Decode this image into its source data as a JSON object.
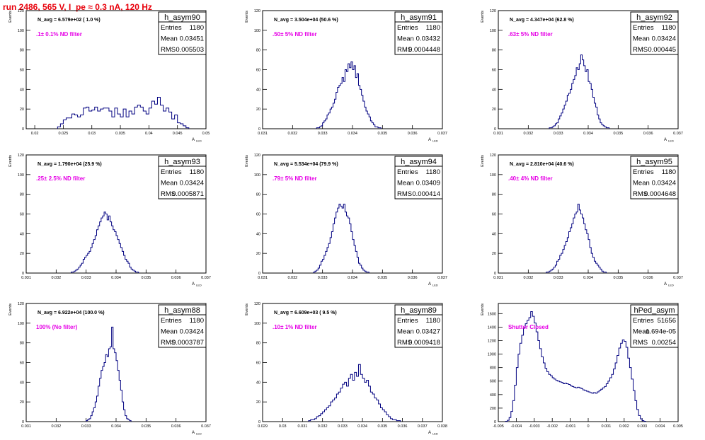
{
  "run_title": "run 2486,   565 V, I_pe ≈ 0.3 nA, 120 Hz",
  "colors": {
    "title": "#e8000b",
    "filter": "#e600e6",
    "hist": "#000080",
    "frame": "#000000"
  },
  "chart_data": [
    {
      "type": "bar",
      "name": "h_asym90",
      "navg": "N_avg = 6.579e+02 ( 1.0 %)",
      "filter": ".1± 0.1% ND filter",
      "stats": [
        [
          "Entries",
          "1180"
        ],
        [
          "Mean",
          "0.03451"
        ],
        [
          "RMS",
          "0.005503"
        ]
      ],
      "ylabel": "Events",
      "xlabel": "A",
      "xlim": [
        0.0185,
        0.05
      ],
      "ylim": [
        0,
        120
      ],
      "xticks": [
        0.02,
        0.025,
        0.03,
        0.035,
        0.04,
        0.045,
        0.05
      ],
      "xtick_labels": [
        "0.02",
        "0.025",
        "0.03",
        "0.035",
        "0.04",
        "0.045",
        "0.05"
      ],
      "yticks": [
        0,
        20,
        40,
        60,
        80,
        100,
        120
      ],
      "bins": {
        "start": 0.024,
        "width": 0.0005,
        "values": [
          2,
          5,
          9,
          11,
          11,
          15,
          14,
          12,
          14,
          21,
          22,
          18,
          19,
          22,
          18,
          20,
          21,
          21,
          18,
          12,
          21,
          15,
          12,
          20,
          12,
          18,
          15,
          22,
          24,
          22,
          18,
          15,
          21,
          28,
          25,
          32,
          24,
          18,
          21,
          17,
          10,
          14,
          6,
          5,
          3,
          1
        ]
      }
    },
    {
      "type": "bar",
      "name": "h_asym91",
      "navg": "N_avg = 3.504e+04 (50.6 %)",
      "filter": ".50± 5% ND filter",
      "stats": [
        [
          "Entries",
          "1180"
        ],
        [
          "Mean",
          "0.03432"
        ],
        [
          "RMS",
          "0.0004448"
        ]
      ],
      "ylabel": "Events",
      "xlabel": "A",
      "xlim": [
        0.031,
        0.037
      ],
      "ylim": [
        0,
        120
      ],
      "xticks": [
        0.031,
        0.032,
        0.033,
        0.034,
        0.035,
        0.036,
        0.037
      ],
      "xtick_labels": [
        "0.031",
        "0.032",
        "0.033",
        "0.034",
        "0.035",
        "0.036",
        "0.037"
      ],
      "yticks": [
        0,
        20,
        40,
        60,
        80,
        100,
        120
      ],
      "bins": {
        "start": 0.0328,
        "width": 5e-05,
        "values": [
          1,
          1,
          2,
          3,
          6,
          8,
          10,
          14,
          16,
          20,
          22,
          26,
          30,
          37,
          42,
          44,
          46,
          52,
          48,
          60,
          58,
          66,
          62,
          68,
          60,
          64,
          52,
          56,
          44,
          40,
          34,
          28,
          22,
          18,
          15,
          12,
          8,
          6,
          4,
          2,
          2,
          1,
          1
        ]
      }
    },
    {
      "type": "bar",
      "name": "h_asym92",
      "navg": "N_avg = 4.347e+04 (62.8 %)",
      "filter": ".63± 5% ND filter",
      "stats": [
        [
          "Entries",
          "1180"
        ],
        [
          "Mean",
          "0.03424"
        ],
        [
          "RMS",
          "0.000445"
        ]
      ],
      "ylabel": "Events",
      "xlabel": "A",
      "xlim": [
        0.031,
        0.037
      ],
      "ylim": [
        0,
        120
      ],
      "xticks": [
        0.031,
        0.032,
        0.033,
        0.034,
        0.035,
        0.036,
        0.037
      ],
      "xtick_labels": [
        "0.031",
        "0.032",
        "0.033",
        "0.034",
        "0.035",
        "0.036",
        "0.037"
      ],
      "yticks": [
        0,
        20,
        40,
        60,
        80,
        100,
        120
      ],
      "bins": {
        "start": 0.0327,
        "width": 5e-05,
        "values": [
          1,
          1,
          2,
          3,
          5,
          6,
          10,
          13,
          16,
          20,
          24,
          28,
          34,
          36,
          40,
          46,
          50,
          54,
          62,
          60,
          66,
          75,
          70,
          64,
          58,
          60,
          48,
          46,
          40,
          32,
          26,
          22,
          14,
          10,
          6,
          4,
          3,
          2,
          1,
          1
        ]
      }
    },
    {
      "type": "bar",
      "name": "h_asym93",
      "navg": "N_avg = 1.790e+04 (25.9 %)",
      "filter": ".25± 2.5% ND filter",
      "stats": [
        [
          "Entries",
          "1180"
        ],
        [
          "Mean",
          "0.03424"
        ],
        [
          "RMS",
          "0.0005871"
        ]
      ],
      "ylabel": "Events",
      "xlabel": "A",
      "xlim": [
        0.031,
        0.037
      ],
      "ylim": [
        0,
        120
      ],
      "xticks": [
        0.031,
        0.032,
        0.033,
        0.034,
        0.035,
        0.036,
        0.037
      ],
      "xtick_labels": [
        "0.031",
        "0.032",
        "0.033",
        "0.034",
        "0.035",
        "0.036",
        "0.037"
      ],
      "yticks": [
        0,
        20,
        40,
        60,
        80,
        100,
        120
      ],
      "bins": {
        "start": 0.0325,
        "width": 5e-05,
        "values": [
          1,
          1,
          2,
          3,
          4,
          6,
          8,
          10,
          14,
          16,
          18,
          20,
          22,
          26,
          30,
          34,
          38,
          44,
          48,
          52,
          56,
          58,
          62,
          60,
          54,
          58,
          52,
          48,
          44,
          42,
          38,
          34,
          30,
          26,
          22,
          18,
          14,
          12,
          10,
          6,
          4,
          3,
          2,
          1,
          1
        ]
      }
    },
    {
      "type": "bar",
      "name": "h_asym94",
      "navg": "N_avg = 5.534e+04 (79.9 %)",
      "filter": ".79± 5% ND filter",
      "stats": [
        [
          "Entries",
          "1180"
        ],
        [
          "Mean",
          "0.03409"
        ],
        [
          "RMS",
          "0.000414"
        ]
      ],
      "ylabel": "Events",
      "xlabel": "A",
      "xlim": [
        0.031,
        0.037
      ],
      "ylim": [
        0,
        120
      ],
      "xticks": [
        0.031,
        0.032,
        0.033,
        0.034,
        0.035,
        0.036,
        0.037
      ],
      "xtick_labels": [
        "0.031",
        "0.032",
        "0.033",
        "0.034",
        "0.035",
        "0.036",
        "0.037"
      ],
      "yticks": [
        0,
        20,
        40,
        60,
        80,
        100,
        120
      ],
      "bins": {
        "start": 0.0327,
        "width": 5e-05,
        "values": [
          1,
          2,
          3,
          5,
          8,
          12,
          14,
          18,
          22,
          26,
          30,
          36,
          42,
          50,
          56,
          62,
          66,
          70,
          68,
          66,
          70,
          62,
          58,
          56,
          50,
          42,
          34,
          28,
          22,
          16,
          10,
          8,
          5,
          3,
          2,
          1,
          1
        ]
      }
    },
    {
      "type": "bar",
      "name": "h_asym95",
      "navg": "N_avg = 2.810e+04 (40.6 %)",
      "filter": ".40± 4% ND filter",
      "stats": [
        [
          "Entries",
          "1180"
        ],
        [
          "Mean",
          "0.03424"
        ],
        [
          "RMS",
          "0.0004648"
        ]
      ],
      "ylabel": "Events",
      "xlabel": "A",
      "xlim": [
        0.031,
        0.037
      ],
      "ylim": [
        0,
        120
      ],
      "xticks": [
        0.031,
        0.032,
        0.033,
        0.034,
        0.035,
        0.036,
        0.037
      ],
      "xtick_labels": [
        "0.031",
        "0.032",
        "0.033",
        "0.034",
        "0.035",
        "0.036",
        "0.037"
      ],
      "yticks": [
        0,
        20,
        40,
        60,
        80,
        100,
        120
      ],
      "bins": {
        "start": 0.0326,
        "width": 5e-05,
        "values": [
          1,
          1,
          2,
          3,
          4,
          6,
          8,
          12,
          14,
          18,
          20,
          24,
          28,
          32,
          36,
          42,
          46,
          50,
          56,
          60,
          62,
          70,
          64,
          60,
          56,
          50,
          44,
          40,
          34,
          26,
          20,
          16,
          12,
          10,
          8,
          6,
          4,
          2,
          1,
          1
        ]
      }
    },
    {
      "type": "bar",
      "name": "h_asym88",
      "navg": "N_avg = 6.922e+04 (100.0 %)",
      "filter": "100% (No filter)",
      "stats": [
        [
          "Entries",
          "1180"
        ],
        [
          "Mean",
          "0.03424"
        ],
        [
          "RMS",
          "0.0003787"
        ]
      ],
      "ylabel": "Events",
      "xlabel": "A",
      "xlim": [
        0.031,
        0.037
      ],
      "ylim": [
        0,
        120
      ],
      "xticks": [
        0.031,
        0.032,
        0.033,
        0.034,
        0.035,
        0.036,
        0.037
      ],
      "xtick_labels": [
        "0.031",
        "0.032",
        "0.033",
        "0.034",
        "0.035",
        "0.036",
        "0.037"
      ],
      "yticks": [
        0,
        20,
        40,
        60,
        80,
        100,
        120
      ],
      "bins": {
        "start": 0.033,
        "width": 5e-05,
        "values": [
          1,
          2,
          3,
          6,
          10,
          14,
          20,
          26,
          36,
          44,
          52,
          56,
          60,
          68,
          66,
          74,
          76,
          96,
          74,
          70,
          62,
          52,
          42,
          32,
          20,
          12,
          6,
          3,
          2,
          1
        ]
      }
    },
    {
      "type": "bar",
      "name": "h_asym89",
      "navg": "N_avg = 6.609e+03 ( 9.5 %)",
      "filter": ".10± 1% ND filter",
      "stats": [
        [
          "Entries",
          "1180"
        ],
        [
          "Mean",
          "0.03427"
        ],
        [
          "RMS",
          "0.0009418"
        ]
      ],
      "ylabel": "Events",
      "xlabel": "A",
      "xlim": [
        0.029,
        0.038
      ],
      "ylim": [
        0,
        120
      ],
      "xticks": [
        0.029,
        0.03,
        0.031,
        0.032,
        0.033,
        0.034,
        0.035,
        0.036,
        0.037,
        0.038
      ],
      "xtick_labels": [
        "0.029",
        "0.03",
        "0.031",
        "0.032",
        "0.033",
        "0.034",
        "0.035",
        "0.036",
        "0.037",
        "0.038"
      ],
      "yticks": [
        0,
        20,
        40,
        60,
        80,
        100,
        120
      ],
      "bins": {
        "start": 0.0313,
        "width": 0.0001,
        "values": [
          1,
          2,
          2,
          3,
          5,
          6,
          8,
          10,
          12,
          14,
          16,
          20,
          22,
          24,
          28,
          30,
          34,
          38,
          40,
          36,
          44,
          48,
          42,
          50,
          46,
          58,
          48,
          44,
          40,
          42,
          36,
          30,
          28,
          24,
          22,
          18,
          14,
          12,
          10,
          7,
          5,
          3,
          2,
          2,
          1,
          1
        ]
      }
    },
    {
      "type": "line",
      "name": "hPed_asym",
      "navg": "",
      "filter": "Shutter Closed",
      "stats": [
        [
          "Entries",
          "51656"
        ],
        [
          "Mean",
          "-1.694e-05"
        ],
        [
          "RMS",
          "0.00254"
        ]
      ],
      "ylabel": "Events",
      "xlabel": "",
      "xlim": [
        -0.005,
        0.005
      ],
      "ylim": [
        0,
        1750
      ],
      "xticks": [
        -0.005,
        -0.004,
        -0.003,
        -0.002,
        -0.001,
        0,
        0.001,
        0.002,
        0.003,
        0.004,
        0.005
      ],
      "xtick_labels": [
        "-0.005",
        "-0.004",
        "-0.003",
        "-0.002",
        "-0.001",
        "0",
        "0.001",
        "0.002",
        "0.003",
        "0.004",
        "0.005"
      ],
      "yticks": [
        0,
        200,
        400,
        600,
        800,
        1000,
        1200,
        1400,
        1600
      ],
      "bins": {
        "start": -0.0046,
        "width": 0.0001,
        "values": [
          5,
          20,
          60,
          150,
          310,
          540,
          800,
          1000,
          1160,
          1280,
          1390,
          1450,
          1500,
          1540,
          1630,
          1560,
          1460,
          1330,
          1200,
          1080,
          960,
          870,
          790,
          740,
          700,
          680,
          650,
          630,
          610,
          600,
          590,
          580,
          560,
          570,
          560,
          550,
          530,
          520,
          510,
          500,
          510,
          500,
          490,
          470,
          460,
          450,
          440,
          430,
          420,
          430,
          420,
          440,
          460,
          480,
          500,
          520,
          560,
          600,
          650,
          700,
          780,
          870,
          980,
          1090,
          1160,
          1210,
          1190,
          1100,
          940,
          800,
          630,
          460,
          310,
          180,
          90,
          40,
          15,
          5
        ]
      }
    }
  ]
}
